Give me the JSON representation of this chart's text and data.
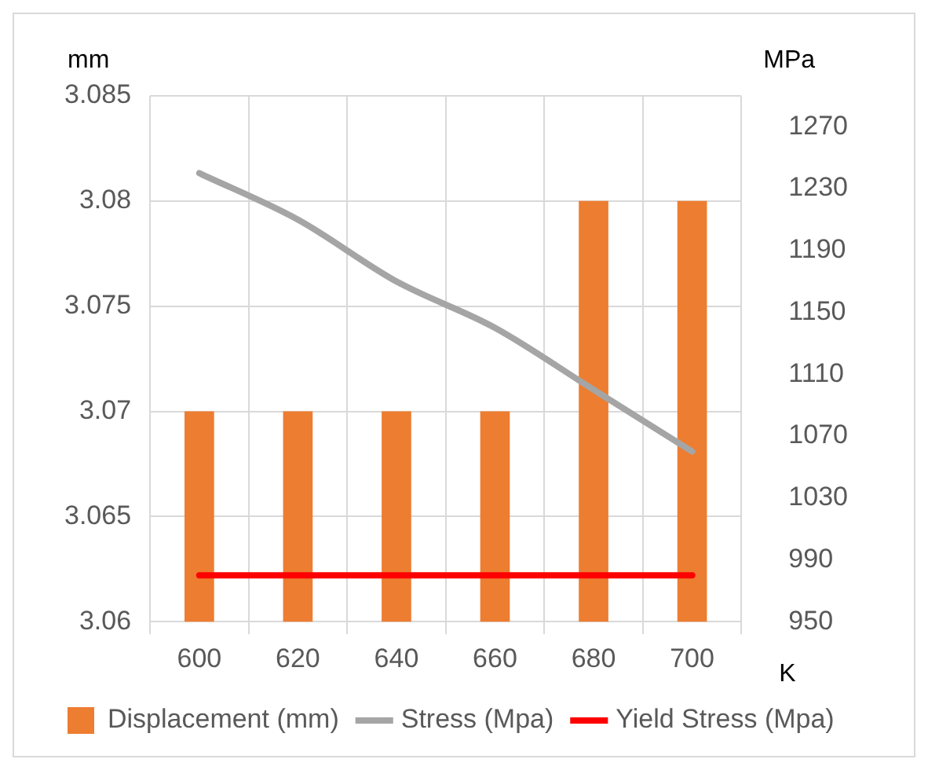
{
  "chart_data": {
    "type": "bar",
    "xlabel": "K",
    "ylabel": "mm",
    "y2label": "MPa",
    "categories": [
      "600",
      "620",
      "640",
      "660",
      "680",
      "700"
    ],
    "series": [
      {
        "name": "Displacement (mm)",
        "color": "#ed7d31",
        "values": [
          3.07,
          3.07,
          3.07,
          3.07,
          3.08,
          3.08
        ]
      },
      {
        "name": "Stress (Mpa)",
        "type": "line",
        "axis": "y2",
        "color": "#a5a5a5",
        "values": [
          1240,
          1210,
          1170,
          1140,
          1100,
          1060
        ]
      },
      {
        "name": "Yield Stress (Mpa)",
        "type": "line",
        "axis": "y2",
        "color": "#ff0000",
        "values": [
          980,
          980,
          980,
          980,
          980,
          980
        ]
      }
    ],
    "ylim": [
      3.06,
      3.085
    ],
    "yticks": [
      3.06,
      3.065,
      3.07,
      3.075,
      3.08,
      3.085
    ],
    "y2lim": [
      950,
      1290
    ],
    "y2ticks": [
      950,
      990,
      1030,
      1070,
      1110,
      1150,
      1190,
      1230,
      1270
    ],
    "grid": true,
    "legend": "bottom",
    "marker": "none",
    "line_style": "solid"
  }
}
